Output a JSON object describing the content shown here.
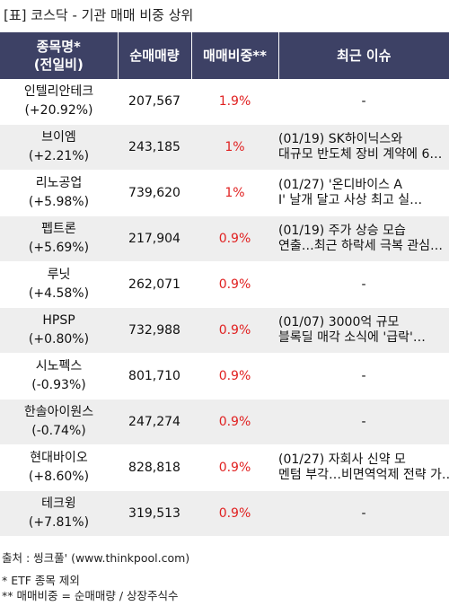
{
  "title": "[표] 코스닥 - 기관 매매 비중 상위",
  "headers": {
    "name": [
      "종목명*",
      "(전일비)"
    ],
    "volume": "순매매량",
    "ratio": "매매비중**",
    "issue": "최근 이슈"
  },
  "rows": [
    {
      "name": "인텔리안테크",
      "change": "(+20.92%)",
      "volume": "207,567",
      "ratio": "1.9%",
      "issue": [
        "-"
      ]
    },
    {
      "name": "브이엠",
      "change": "(+2.21%)",
      "volume": "243,185",
      "ratio": "1%",
      "issue": [
        "(01/19) SK하이닉스와",
        "대규모 반도체 장비 계약에 6…"
      ]
    },
    {
      "name": "리노공업",
      "change": "(+5.98%)",
      "volume": "739,620",
      "ratio": "1%",
      "issue": [
        "(01/27) '온디바이스 A",
        "I' 날개 달고 사상 최고 실…"
      ]
    },
    {
      "name": "펩트론",
      "change": "(+5.69%)",
      "volume": "217,904",
      "ratio": "0.9%",
      "issue": [
        "(01/19) 주가 상승 모습",
        "  연출…최근 하락세 극복 관심…"
      ]
    },
    {
      "name": "루닛",
      "change": "(+4.58%)",
      "volume": "262,071",
      "ratio": "0.9%",
      "issue": [
        "-"
      ]
    },
    {
      "name": "HPSP",
      "change": "(+0.80%)",
      "volume": "732,988",
      "ratio": "0.9%",
      "issue": [
        "(01/07) 3000억 규모",
        "  블록딜 매각 소식에 '급락'…"
      ]
    },
    {
      "name": "시노펙스",
      "change": "(-0.93%)",
      "volume": "801,710",
      "ratio": "0.9%",
      "issue": [
        "-"
      ]
    },
    {
      "name": "한솔아이원스",
      "change": "(-0.74%)",
      "volume": "247,274",
      "ratio": "0.9%",
      "issue": [
        "-"
      ]
    },
    {
      "name": "현대바이오",
      "change": "(+8.60%)",
      "volume": "828,818",
      "ratio": "0.9%",
      "issue": [
        "(01/27) 자회사 신약 모",
        "멘텀 부각…비면역억제 전략 가…"
      ]
    },
    {
      "name": "테크윙",
      "change": "(+7.81%)",
      "volume": "319,513",
      "ratio": "0.9%",
      "issue": [
        "-"
      ]
    }
  ],
  "footer": {
    "source": "출처 : 씽크풀' (www.thinkpool.com)",
    "note1": "* ETF 종목 제외",
    "note2": "** 매매비중 = 순매매량 / 상장주식수"
  }
}
